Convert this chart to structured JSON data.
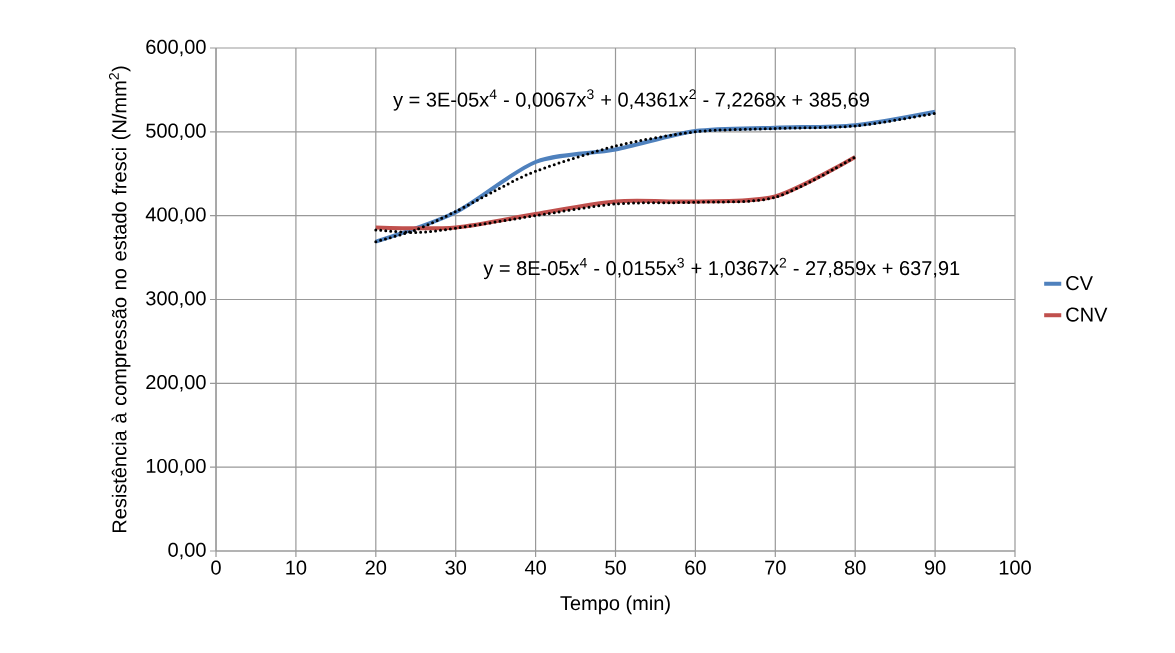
{
  "chart_data": {
    "type": "line",
    "xlabel": "Tempo (min)",
    "ylabel": "Resistência à compressão no estado fresci (N/mm$^{2}$)",
    "annotations": [
      "y = 3E-05x$^{4}$ - 0,0067x$^{3}$ + 0,4361x$^{2}$ - 7,2268x + 385,69",
      "y = 8E-05x$^{4}$ - 0,0155x$^{3}$ + 1,0367x$^{2}$ - 27,859x + 637,91"
    ],
    "x": [
      20,
      30,
      40,
      50,
      60,
      70,
      80,
      90
    ],
    "series": [
      {
        "name": "CV",
        "color": "#4f81bd",
        "line_style": "solid",
        "values": [
          369,
          404,
          464,
          479,
          501,
          505,
          508,
          524
        ]
      },
      {
        "name": "CNV",
        "color": "#c0504d",
        "line_style": "solid",
        "x": [
          20,
          30,
          40,
          50,
          60,
          70,
          80
        ],
        "values": [
          386,
          386,
          402,
          417,
          417,
          423,
          470
        ]
      },
      {
        "color": "#000000",
        "line_style": "dotted",
        "x": [
          20,
          25,
          30,
          35,
          40,
          50,
          60,
          70,
          80,
          90
        ],
        "values": [
          369,
          383,
          405,
          430,
          453,
          483,
          500,
          504,
          507,
          522
        ]
      },
      {
        "color": "#000000",
        "line_style": "dotted",
        "x": [
          20,
          25,
          30,
          40,
          50,
          60,
          70,
          80
        ],
        "values": [
          383,
          380,
          385,
          400,
          414,
          416,
          422,
          470
        ]
      }
    ],
    "xlim": [
      0,
      100
    ],
    "ylim": [
      0,
      600
    ],
    "xticks": [
      0,
      10,
      20,
      30,
      40,
      50,
      60,
      70,
      80,
      90,
      100
    ],
    "yticks": [
      {
        "value": 0,
        "label": "0,00"
      },
      {
        "value": 100,
        "label": "100,00"
      },
      {
        "value": 200,
        "label": "200,00"
      },
      {
        "value": 300,
        "label": "300,00"
      },
      {
        "value": 400,
        "label": "400,00"
      },
      {
        "value": 500,
        "label": "500,00"
      },
      {
        "value": 600,
        "label": "600,00"
      }
    ],
    "grid": true,
    "legend": "right",
    "marker": "none"
  }
}
